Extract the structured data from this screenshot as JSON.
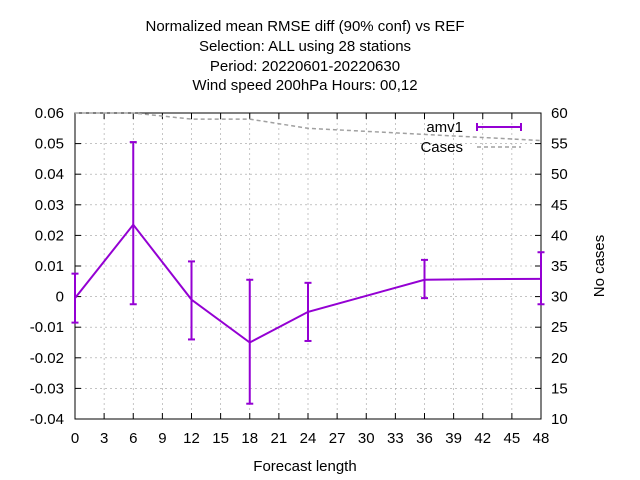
{
  "chart_data": {
    "type": "line",
    "title_lines": [
      "Normalized mean RMSE diff (90% conf) vs REF",
      "Selection: ALL using    28 stations",
      "Period: 20220601-20220630",
      "Wind speed 200hPa   Hours:  00,12"
    ],
    "xlabel": "Forecast length",
    "ylabel": "",
    "y2label": "No cases",
    "xlim": [
      0,
      48
    ],
    "ylim": [
      -0.04,
      0.06
    ],
    "y2lim": [
      10,
      60
    ],
    "x_ticks": [
      "0",
      "3",
      "6",
      "9",
      "12",
      "15",
      "18",
      "21",
      "24",
      "27",
      "30",
      "33",
      "36",
      "39",
      "42",
      "45",
      "48"
    ],
    "y_ticks": [
      "-0.04",
      "-0.03",
      "-0.02",
      "-0.01",
      "0",
      "0.01",
      "0.02",
      "0.03",
      "0.04",
      "0.05",
      "0.06"
    ],
    "y2_ticks": [
      "10",
      "15",
      "20",
      "25",
      "30",
      "35",
      "40",
      "45",
      "50",
      "55",
      "60"
    ],
    "grid": true,
    "legend_position": "top-right",
    "series": [
      {
        "name": "amv1",
        "color": "#9400d3",
        "axis": "y",
        "x": [
          0,
          6,
          12,
          18,
          24,
          36,
          42,
          48
        ],
        "y": [
          -0.0005,
          0.0235,
          -0.001,
          -0.015,
          -0.005,
          0.0055,
          0.0057,
          0.0058
        ],
        "err_low": [
          -0.0085,
          -0.0025,
          -0.014,
          -0.035,
          -0.0145,
          -0.0005,
          null,
          -0.0025
        ],
        "err_high": [
          0.0075,
          0.0505,
          0.0115,
          0.0055,
          0.0045,
          0.012,
          null,
          0.0145
        ]
      },
      {
        "name": "Cases",
        "color": "#a0a0a0",
        "axis": "y2",
        "x": [
          0,
          6,
          12,
          18,
          24,
          30,
          36,
          42,
          48
        ],
        "y": [
          60,
          60,
          59,
          59,
          57.5,
          57,
          56.5,
          56,
          55.5
        ]
      }
    ]
  }
}
